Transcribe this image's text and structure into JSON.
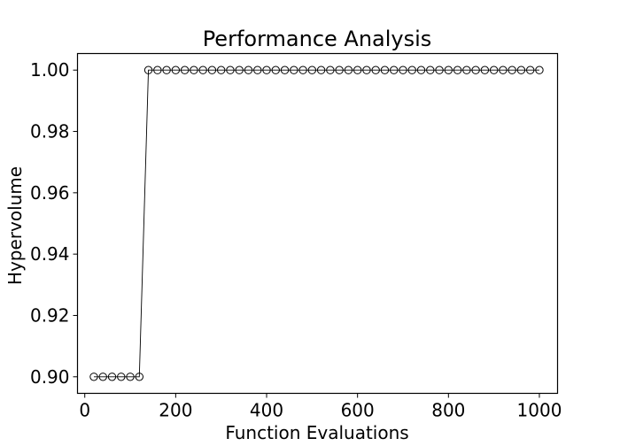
{
  "chart_data": {
    "type": "line",
    "title": "Performance Analysis",
    "xlabel": "Function Evaluations",
    "ylabel": "Hypervolume",
    "xlim": [
      -16,
      1040
    ],
    "ylim": [
      0.8946,
      1.0054
    ],
    "xticks": [
      0,
      200,
      400,
      600,
      800,
      1000
    ],
    "xtick_labels": [
      "0",
      "200",
      "400",
      "600",
      "800",
      "1000"
    ],
    "yticks": [
      0.9,
      0.92,
      0.94,
      0.96,
      0.98,
      1.0
    ],
    "ytick_labels": [
      "0.90",
      "0.92",
      "0.94",
      "0.96",
      "0.98",
      "1.00"
    ],
    "grid": false,
    "series": [
      {
        "name": "Hypervolume",
        "marker": "open-circle",
        "color": "#000000",
        "x": [
          20,
          40,
          60,
          80,
          100,
          120,
          140,
          160,
          180,
          200,
          220,
          240,
          260,
          280,
          300,
          320,
          340,
          360,
          380,
          400,
          420,
          440,
          460,
          480,
          500,
          520,
          540,
          560,
          580,
          600,
          620,
          640,
          660,
          680,
          700,
          720,
          740,
          760,
          780,
          800,
          820,
          840,
          860,
          880,
          900,
          920,
          940,
          960,
          980,
          1000
        ],
        "y": [
          0.9,
          0.9,
          0.9,
          0.9,
          0.9,
          0.9,
          1.0,
          1.0,
          1.0,
          1.0,
          1.0,
          1.0,
          1.0,
          1.0,
          1.0,
          1.0,
          1.0,
          1.0,
          1.0,
          1.0,
          1.0,
          1.0,
          1.0,
          1.0,
          1.0,
          1.0,
          1.0,
          1.0,
          1.0,
          1.0,
          1.0,
          1.0,
          1.0,
          1.0,
          1.0,
          1.0,
          1.0,
          1.0,
          1.0,
          1.0,
          1.0,
          1.0,
          1.0,
          1.0,
          1.0,
          1.0,
          1.0,
          1.0,
          1.0,
          1.0
        ]
      }
    ]
  }
}
